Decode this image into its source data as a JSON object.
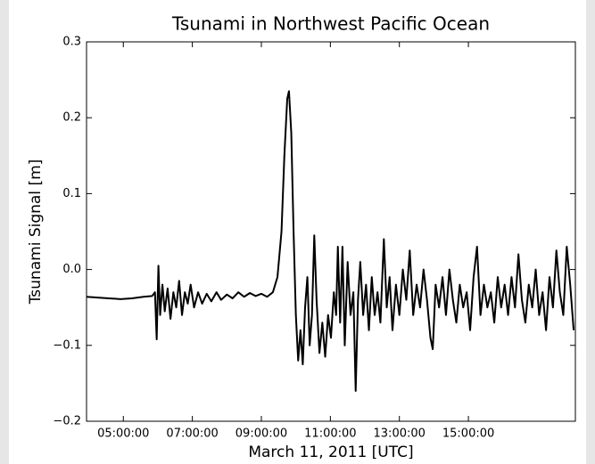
{
  "chart_data": {
    "type": "line",
    "title": "Tsunami in Northwest Pacific Ocean",
    "xlabel": "March 11, 2011 [UTC]",
    "ylabel": "Tsunami Signal [m]",
    "color": "#000000",
    "xlim": [
      "03:56:00",
      "18:06:00"
    ],
    "xticks": [
      "05:00:00",
      "07:00:00",
      "09:00:00",
      "11:00:00",
      "13:00:00",
      "15:00:00"
    ],
    "ylim": [
      -0.2,
      0.3
    ],
    "yticks": [
      {
        "value": -0.2,
        "label": "−0.2"
      },
      {
        "value": -0.1,
        "label": "−0.1"
      },
      {
        "value": 0,
        "label": "0.0"
      },
      0.1,
      0.2,
      0.3
    ],
    "x": [
      "03:56:00",
      "04:15:00",
      "04:35:00",
      "04:55:00",
      "05:15:00",
      "05:35:00",
      "05:50:00",
      "05:55:00",
      "05:58:00",
      "06:01:00",
      "06:04:00",
      "06:08:00",
      "06:12:00",
      "06:17:00",
      "06:22:00",
      "06:27:00",
      "06:32:00",
      "06:37:00",
      "06:42:00",
      "06:47:00",
      "06:52:00",
      "06:57:00",
      "07:03:00",
      "07:10:00",
      "07:17:00",
      "07:25:00",
      "07:33:00",
      "07:42:00",
      "07:50:00",
      "08:00:00",
      "08:10:00",
      "08:20:00",
      "08:30:00",
      "08:40:00",
      "08:50:00",
      "09:00:00",
      "09:10:00",
      "09:20:00",
      "09:28:00",
      "09:35:00",
      "09:40:00",
      "09:45:00",
      "09:48:00",
      "09:52:00",
      "09:56:00",
      "10:00:00",
      "10:04:00",
      "10:08:00",
      "10:12:00",
      "10:16:00",
      "10:20:00",
      "10:24:00",
      "10:28:00",
      "10:32:00",
      "10:36:00",
      "10:41:00",
      "10:46:00",
      "10:51:00",
      "10:56:00",
      "11:01:00",
      "11:06:00",
      "11:10:00",
      "11:13:00",
      "11:17:00",
      "11:21:00",
      "11:25:00",
      "11:30:00",
      "11:35:00",
      "11:40:00",
      "11:44:00",
      "11:48:00",
      "11:52:00",
      "11:57:00",
      "12:02:00",
      "12:07:00",
      "12:12:00",
      "12:17:00",
      "12:22:00",
      "12:27:00",
      "12:33:00",
      "12:38:00",
      "12:43:00",
      "12:48:00",
      "12:54:00",
      "13:00:00",
      "13:06:00",
      "13:12:00",
      "13:18:00",
      "13:24:00",
      "13:30:00",
      "13:36:00",
      "13:42:00",
      "13:48:00",
      "13:54:00",
      "13:58:00",
      "14:03:00",
      "14:09:00",
      "14:15:00",
      "14:21:00",
      "14:27:00",
      "14:33:00",
      "14:39:00",
      "14:45:00",
      "14:51:00",
      "14:57:00",
      "15:03:00",
      "15:09:00",
      "15:15:00",
      "15:21:00",
      "15:27:00",
      "15:33:00",
      "15:39:00",
      "15:45:00",
      "15:51:00",
      "15:57:00",
      "16:03:00",
      "16:09:00",
      "16:15:00",
      "16:21:00",
      "16:27:00",
      "16:33:00",
      "16:39:00",
      "16:45:00",
      "16:51:00",
      "16:57:00",
      "17:03:00",
      "17:09:00",
      "17:15:00",
      "17:21:00",
      "17:27:00",
      "17:33:00",
      "17:39:00",
      "17:45:00",
      "17:51:00",
      "17:57:00",
      "18:03:00"
    ],
    "values": [
      -0.036,
      -0.037,
      -0.038,
      -0.039,
      -0.038,
      -0.036,
      -0.035,
      -0.03,
      -0.092,
      0.005,
      -0.06,
      -0.02,
      -0.055,
      -0.025,
      -0.065,
      -0.03,
      -0.05,
      -0.015,
      -0.06,
      -0.03,
      -0.045,
      -0.02,
      -0.05,
      -0.03,
      -0.045,
      -0.032,
      -0.042,
      -0.03,
      -0.04,
      -0.033,
      -0.038,
      -0.03,
      -0.036,
      -0.031,
      -0.035,
      -0.032,
      -0.036,
      -0.03,
      -0.01,
      0.05,
      0.15,
      0.225,
      0.235,
      0.18,
      0.05,
      -0.06,
      -0.12,
      -0.08,
      -0.125,
      -0.05,
      -0.01,
      -0.1,
      -0.06,
      0.045,
      -0.04,
      -0.11,
      -0.07,
      -0.115,
      -0.06,
      -0.09,
      -0.03,
      -0.06,
      0.03,
      -0.07,
      0.03,
      -0.1,
      0.01,
      -0.06,
      -0.03,
      -0.16,
      -0.04,
      0.01,
      -0.06,
      -0.02,
      -0.08,
      -0.01,
      -0.06,
      -0.03,
      -0.07,
      0.04,
      -0.05,
      -0.01,
      -0.08,
      -0.02,
      -0.06,
      0.0,
      -0.04,
      0.025,
      -0.06,
      -0.02,
      -0.05,
      0.0,
      -0.04,
      -0.09,
      -0.105,
      -0.02,
      -0.05,
      -0.01,
      -0.06,
      0.0,
      -0.04,
      -0.07,
      -0.02,
      -0.05,
      -0.03,
      -0.08,
      -0.01,
      0.03,
      -0.06,
      -0.02,
      -0.05,
      -0.03,
      -0.07,
      -0.01,
      -0.05,
      -0.02,
      -0.06,
      -0.01,
      -0.05,
      0.02,
      -0.04,
      -0.07,
      -0.02,
      -0.05,
      0.0,
      -0.06,
      -0.03,
      -0.08,
      -0.01,
      -0.05,
      0.025,
      -0.03,
      -0.06,
      0.03,
      -0.02,
      -0.08
    ]
  }
}
